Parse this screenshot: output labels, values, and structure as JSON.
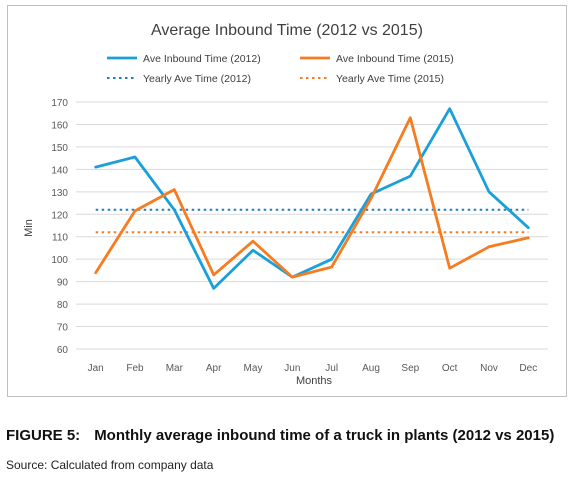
{
  "chart_data": {
    "type": "line",
    "title": "Average Inbound Time (2012 vs 2015)",
    "xlabel": "Months",
    "ylabel": "Min",
    "ylim": [
      60,
      170
    ],
    "yticks": [
      60,
      70,
      80,
      90,
      100,
      110,
      120,
      130,
      140,
      150,
      160,
      170
    ],
    "grid": true,
    "legend_position": "top",
    "categories": [
      "Jan",
      "Feb",
      "Mar",
      "Apr",
      "May",
      "Jun",
      "Jul",
      "Aug",
      "Sep",
      "Oct",
      "Nov",
      "Dec"
    ],
    "series": [
      {
        "name": "Ave Inbound Time (2012)",
        "color": "#1aa0d8",
        "style": "solid",
        "values": [
          141,
          145.5,
          122,
          87,
          104,
          92,
          100,
          129,
          137,
          167,
          130,
          114
        ]
      },
      {
        "name": "Ave Inbound Time (2015)",
        "color": "#f57c20",
        "style": "solid",
        "values": [
          94,
          121.5,
          131,
          93,
          108,
          92,
          96.5,
          127,
          163,
          96,
          105.5,
          109.5
        ]
      },
      {
        "name": "Yearly Ave Time (2012)",
        "color": "#1a7ec2",
        "style": "dotted",
        "values": [
          122,
          122,
          122,
          122,
          122,
          122,
          122,
          122,
          122,
          122,
          122,
          122
        ]
      },
      {
        "name": "Yearly Ave Time (2015)",
        "color": "#f57c20",
        "style": "dotted",
        "values": [
          112,
          112,
          112,
          112,
          112,
          112,
          112,
          112,
          112,
          112,
          112,
          112
        ]
      }
    ]
  },
  "caption": {
    "number": "FIGURE 5:",
    "text": "Monthly average inbound time of a truck in plants (2012 vs 2015)"
  },
  "source": "Source: Calculated from company data"
}
